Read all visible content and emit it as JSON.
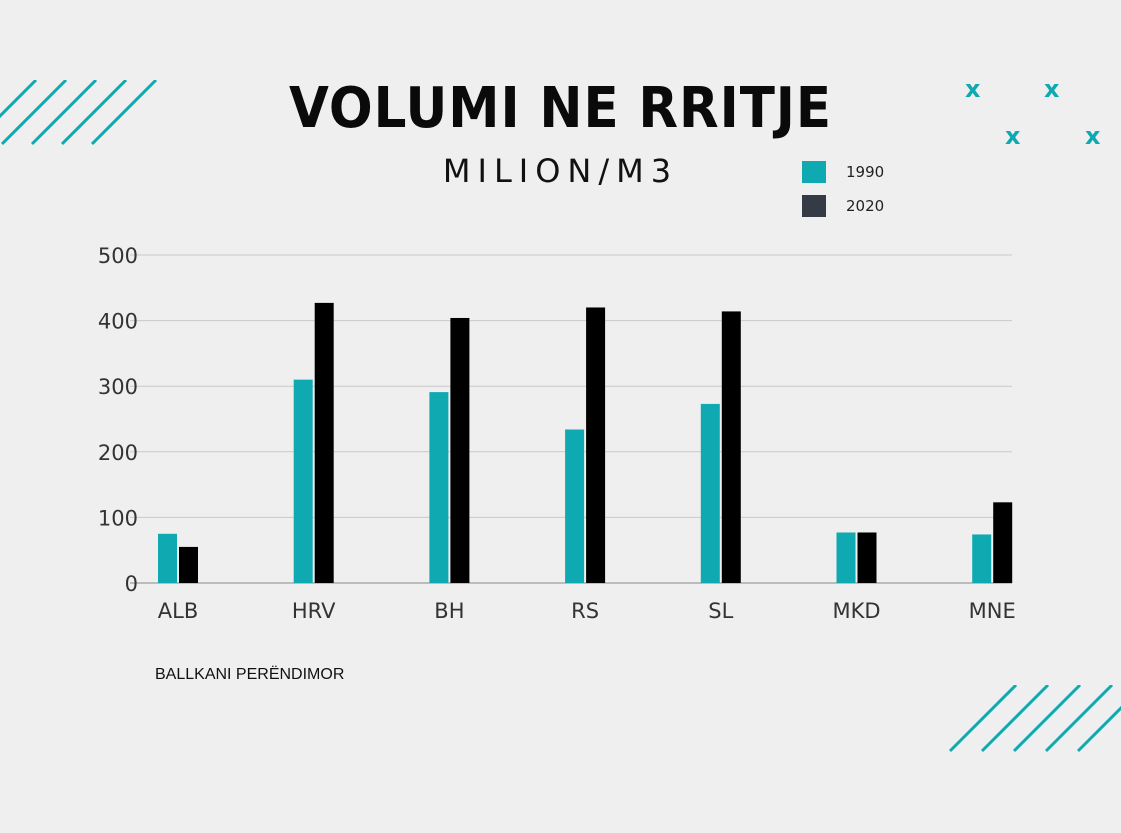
{
  "title": "VOLUMI NE RRITJE",
  "subtitle": "MILION/M3",
  "footnote": "BALLKANI PERËNDIMOR",
  "colors": {
    "background": "#efefef",
    "accent": "#0fa9b2",
    "dark": "#000000",
    "legend_dark": "#353b44"
  },
  "decorations": {
    "x_mark_glyph": "x"
  },
  "chart_data": {
    "type": "bar",
    "title": "VOLUMI NE RRITJE",
    "subtitle": "MILION/M3",
    "categories": [
      "ALB",
      "HRV",
      "BH",
      "RS",
      "SL",
      "MKD",
      "MNE"
    ],
    "series": [
      {
        "name": "1990",
        "color": "#0fa9b2",
        "values": [
          75,
          310,
          291,
          234,
          273,
          77,
          74
        ]
      },
      {
        "name": "2020",
        "color": "#000000",
        "values": [
          55,
          427,
          404,
          420,
          414,
          77,
          123
        ]
      }
    ],
    "ylim": [
      0,
      500
    ],
    "yticks": [
      0,
      100,
      200,
      300,
      400,
      500
    ],
    "grid": true,
    "legend_position": "top-right"
  }
}
